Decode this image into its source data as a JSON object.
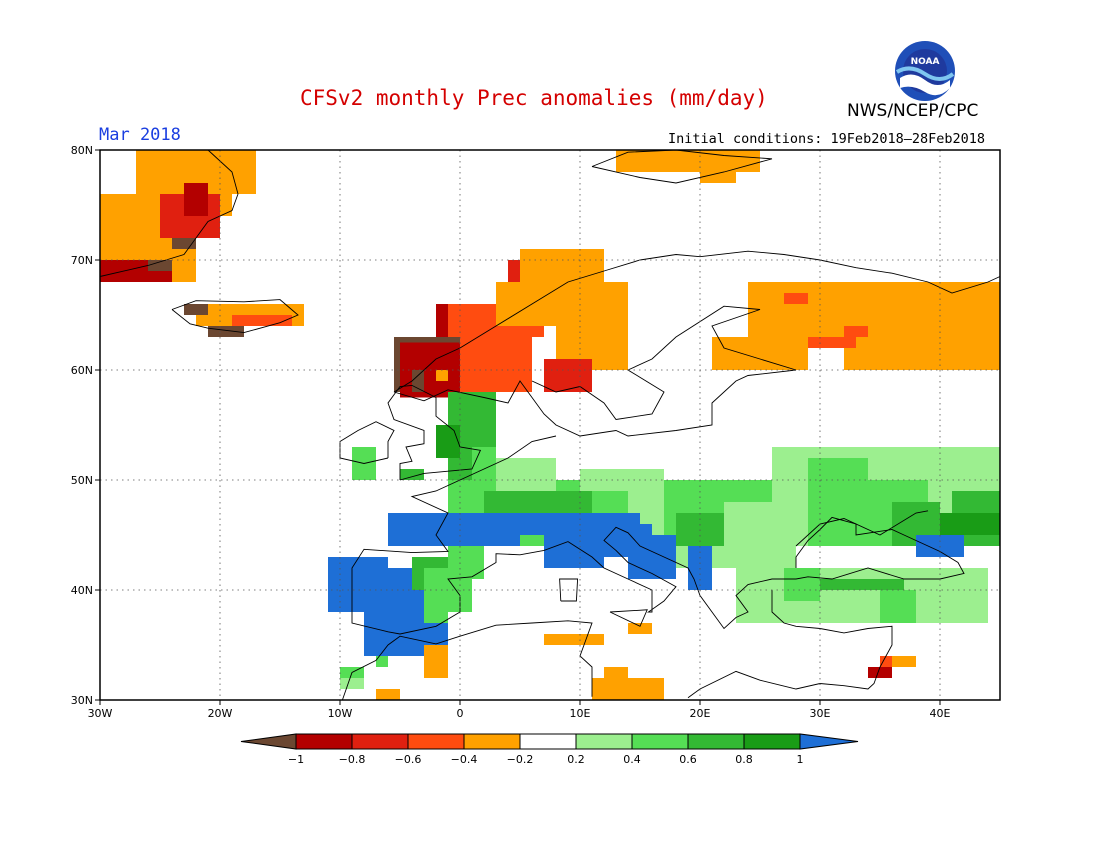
{
  "header": {
    "title": "CFSv2 monthly Prec anomalies (mm/day)",
    "agency": "NWS/NCEP/CPC",
    "valid_month": "Mar 2018",
    "initial_conditions": "Initial conditions: 19Feb2018–28Feb2018"
  },
  "map": {
    "lon_range": [
      -30,
      45
    ],
    "lat_range": [
      30,
      80
    ],
    "lon_ticks": [
      "30W",
      "20W",
      "10W",
      "0",
      "10E",
      "20E",
      "30E",
      "40E"
    ],
    "lat_ticks": [
      "30N",
      "40N",
      "50N",
      "60N",
      "70N",
      "80N"
    ],
    "gridlines": "dotted every 10 degrees"
  },
  "colorbar": {
    "labels": [
      "−1",
      "−0.8",
      "−0.6",
      "−0.4",
      "−0.2",
      "0.2",
      "0.4",
      "0.6",
      "0.8",
      "1"
    ],
    "colors": {
      "lt_m1": "#6b4731",
      "m1_m08": "#b30000",
      "m08_m06": "#e02010",
      "m06_m04": "#ff4c10",
      "m04_m02": "#ffa100",
      "m02_02": "#ffffff",
      "p02_04": "#9cef8f",
      "p04_06": "#55de55",
      "p06_08": "#33b934",
      "p08_1": "#199c16",
      "gt_1": "#1e6fd6"
    }
  },
  "logo": {
    "icon": "noaa-logo",
    "text": "NOAA"
  }
}
